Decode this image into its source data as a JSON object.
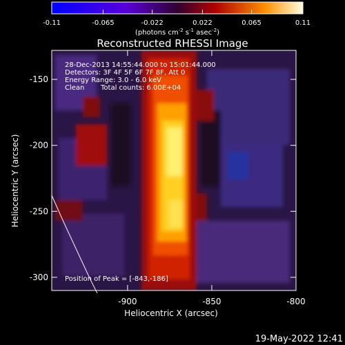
{
  "chart_data": {
    "type": "heatmap",
    "title": "Reconstructed RHESSI Image",
    "xlabel": "Heliocentric X (arcsec)",
    "ylabel": "Heliocentric Y (arcsec)",
    "xlim": [
      -945,
      -800
    ],
    "ylim": [
      -310,
      -128
    ],
    "x_ticks": [
      "-900",
      "-850",
      "-800"
    ],
    "y_ticks": [
      "-150",
      "-200",
      "-250",
      "-300"
    ],
    "colorbar": {
      "ticks": [
        "-0.11",
        "-0.065",
        "-0.022",
        "0.022",
        "0.065",
        "0.11"
      ],
      "range": [
        -0.11,
        0.11
      ],
      "unit_label_parts": [
        "(photons cm",
        "-2",
        " s",
        "-1",
        " asec",
        "-2",
        ")"
      ]
    },
    "annotations": [
      "28-Dec-2013 14:55:44.000 to 15:01:44.000",
      "Detectors: 3F 4F 5F 6F 7F 8F, Att 0",
      "Energy Range: 3.0 - 6.0 keV",
      "Clean",
      "Total counts: 6.00E+04",
      "Position of Peak = [-843,-186]"
    ],
    "peak": [
      -843,
      -186
    ],
    "limb_curve": [
      [
        -945,
        -238
      ],
      [
        -938,
        -258
      ],
      [
        -930,
        -280
      ],
      [
        -922,
        -302
      ],
      [
        -918,
        -312
      ]
    ]
  },
  "footer_timestamp": "19-May-2022 12:41"
}
